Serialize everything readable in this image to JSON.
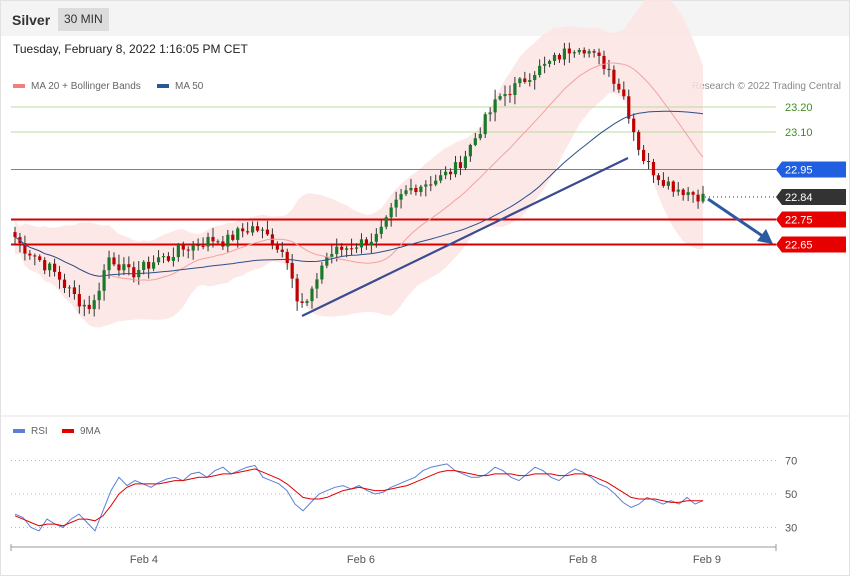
{
  "header": {
    "symbol": "Silver",
    "timeframe": "30 MIN"
  },
  "datetime": "Tuesday, February 8, 2022 1:16:05 PM CET",
  "legend_top": [
    {
      "label": "MA 20 + Bollinger Bands",
      "color": "#f08080"
    },
    {
      "label": "MA 50",
      "color": "#2b5797"
    }
  ],
  "credit": "Research © 2022 Trading Central",
  "legend_bottom": [
    {
      "label": "RSI",
      "color": "#5b7fd6"
    },
    {
      "label": "9MA",
      "color": "#e00000"
    }
  ],
  "colors": {
    "up": "#1a7a2a",
    "down": "#c00000",
    "band": "#fde4e4",
    "ma20": "#f4a0a0",
    "ma50": "#2b4f8a",
    "trend": "#3a4c90",
    "arrow": "#2b5aa0"
  },
  "chart_data": [
    {
      "type": "candlestick",
      "instrument": "Silver",
      "interval": "30 MIN",
      "yscale_reference": {
        "values": [
          23.2,
          23.1
        ]
      },
      "levels": [
        {
          "value": 23.2,
          "label": "23.20",
          "style": "resistance-green"
        },
        {
          "value": 23.1,
          "label": "23.10",
          "style": "resistance-green"
        },
        {
          "value": 22.95,
          "label": "22.95",
          "style": "pivot-blue"
        },
        {
          "value": 22.84,
          "label": "22.84",
          "style": "last-price"
        },
        {
          "value": 22.75,
          "label": "22.75",
          "style": "target-red"
        },
        {
          "value": 22.65,
          "label": "22.65",
          "style": "target-red"
        }
      ],
      "x_ticks": [
        "Feb 4",
        "Feb 6",
        "Feb 8",
        "Feb 9"
      ],
      "close_path": [
        22.68,
        22.64,
        22.62,
        22.6,
        22.57,
        22.55,
        22.52,
        22.48,
        22.45,
        22.42,
        22.4,
        22.42,
        22.52,
        22.6,
        22.58,
        22.55,
        22.53,
        22.55,
        22.56,
        22.58,
        22.6,
        22.59,
        22.62,
        22.63,
        22.64,
        22.65,
        22.66,
        22.67,
        22.67,
        22.66,
        22.68,
        22.7,
        22.71,
        22.72,
        22.7,
        22.68,
        22.65,
        22.62,
        22.58,
        22.42,
        22.4,
        22.45,
        22.55,
        22.6,
        22.62,
        22.63,
        22.64,
        22.65,
        22.66,
        22.67,
        22.68,
        22.72,
        22.78,
        22.83,
        22.86,
        22.88,
        22.89,
        22.9,
        22.91,
        22.92,
        22.94,
        22.96,
        23.0,
        23.05,
        23.1,
        23.15,
        23.2,
        23.24,
        23.26,
        23.28,
        23.3,
        23.33,
        23.35,
        23.36,
        23.38,
        23.4,
        23.42,
        23.44,
        23.45,
        23.43,
        23.4,
        23.38,
        23.35,
        23.3,
        23.25,
        23.15,
        23.05,
        22.98,
        22.95,
        22.92,
        22.9,
        22.88,
        22.87,
        22.86,
        22.85,
        22.84
      ],
      "ma20": "overlay",
      "ma50": "overlay",
      "annotations": [
        "rising trendline",
        "downward arrow toward 22.65"
      ]
    },
    {
      "type": "line",
      "name": "RSI panel",
      "y_ticks": [
        70,
        50,
        30
      ],
      "series": [
        {
          "name": "RSI",
          "values": [
            38,
            36,
            30,
            28,
            35,
            32,
            30,
            35,
            38,
            33,
            28,
            40,
            52,
            60,
            55,
            58,
            56,
            54,
            57,
            59,
            60,
            58,
            62,
            63,
            60,
            64,
            66,
            62,
            64,
            66,
            67,
            60,
            58,
            56,
            52,
            44,
            40,
            45,
            50,
            52,
            54,
            55,
            53,
            55,
            52,
            50,
            51,
            54,
            56,
            58,
            60,
            64,
            66,
            67,
            68,
            64,
            62,
            60,
            60,
            62,
            66,
            64,
            60,
            58,
            62,
            66,
            64,
            60,
            58,
            62,
            65,
            63,
            60,
            56,
            54,
            50,
            45,
            42,
            44,
            48,
            46,
            44,
            46,
            44,
            48,
            44,
            46
          ],
          "values_comment": "RSI values approximated"
        },
        {
          "name": "9MA",
          "values": [
            37,
            35,
            33,
            31,
            32,
            32,
            31,
            33,
            35,
            35,
            34,
            37,
            43,
            50,
            54,
            56,
            56,
            56,
            56,
            57,
            58,
            58,
            59,
            60,
            60,
            61,
            62,
            62,
            63,
            64,
            65,
            63,
            61,
            59,
            56,
            52,
            48,
            47,
            47,
            48,
            50,
            52,
            53,
            54,
            53,
            52,
            52,
            53,
            54,
            55,
            57,
            59,
            61,
            63,
            64,
            64,
            63,
            62,
            61,
            61,
            62,
            62,
            62,
            61,
            61,
            62,
            62,
            62,
            61,
            61,
            62,
            62,
            61,
            59,
            57,
            54,
            51,
            48,
            47,
            47,
            47,
            46,
            45,
            45,
            46,
            46,
            46
          ]
        }
      ]
    }
  ]
}
